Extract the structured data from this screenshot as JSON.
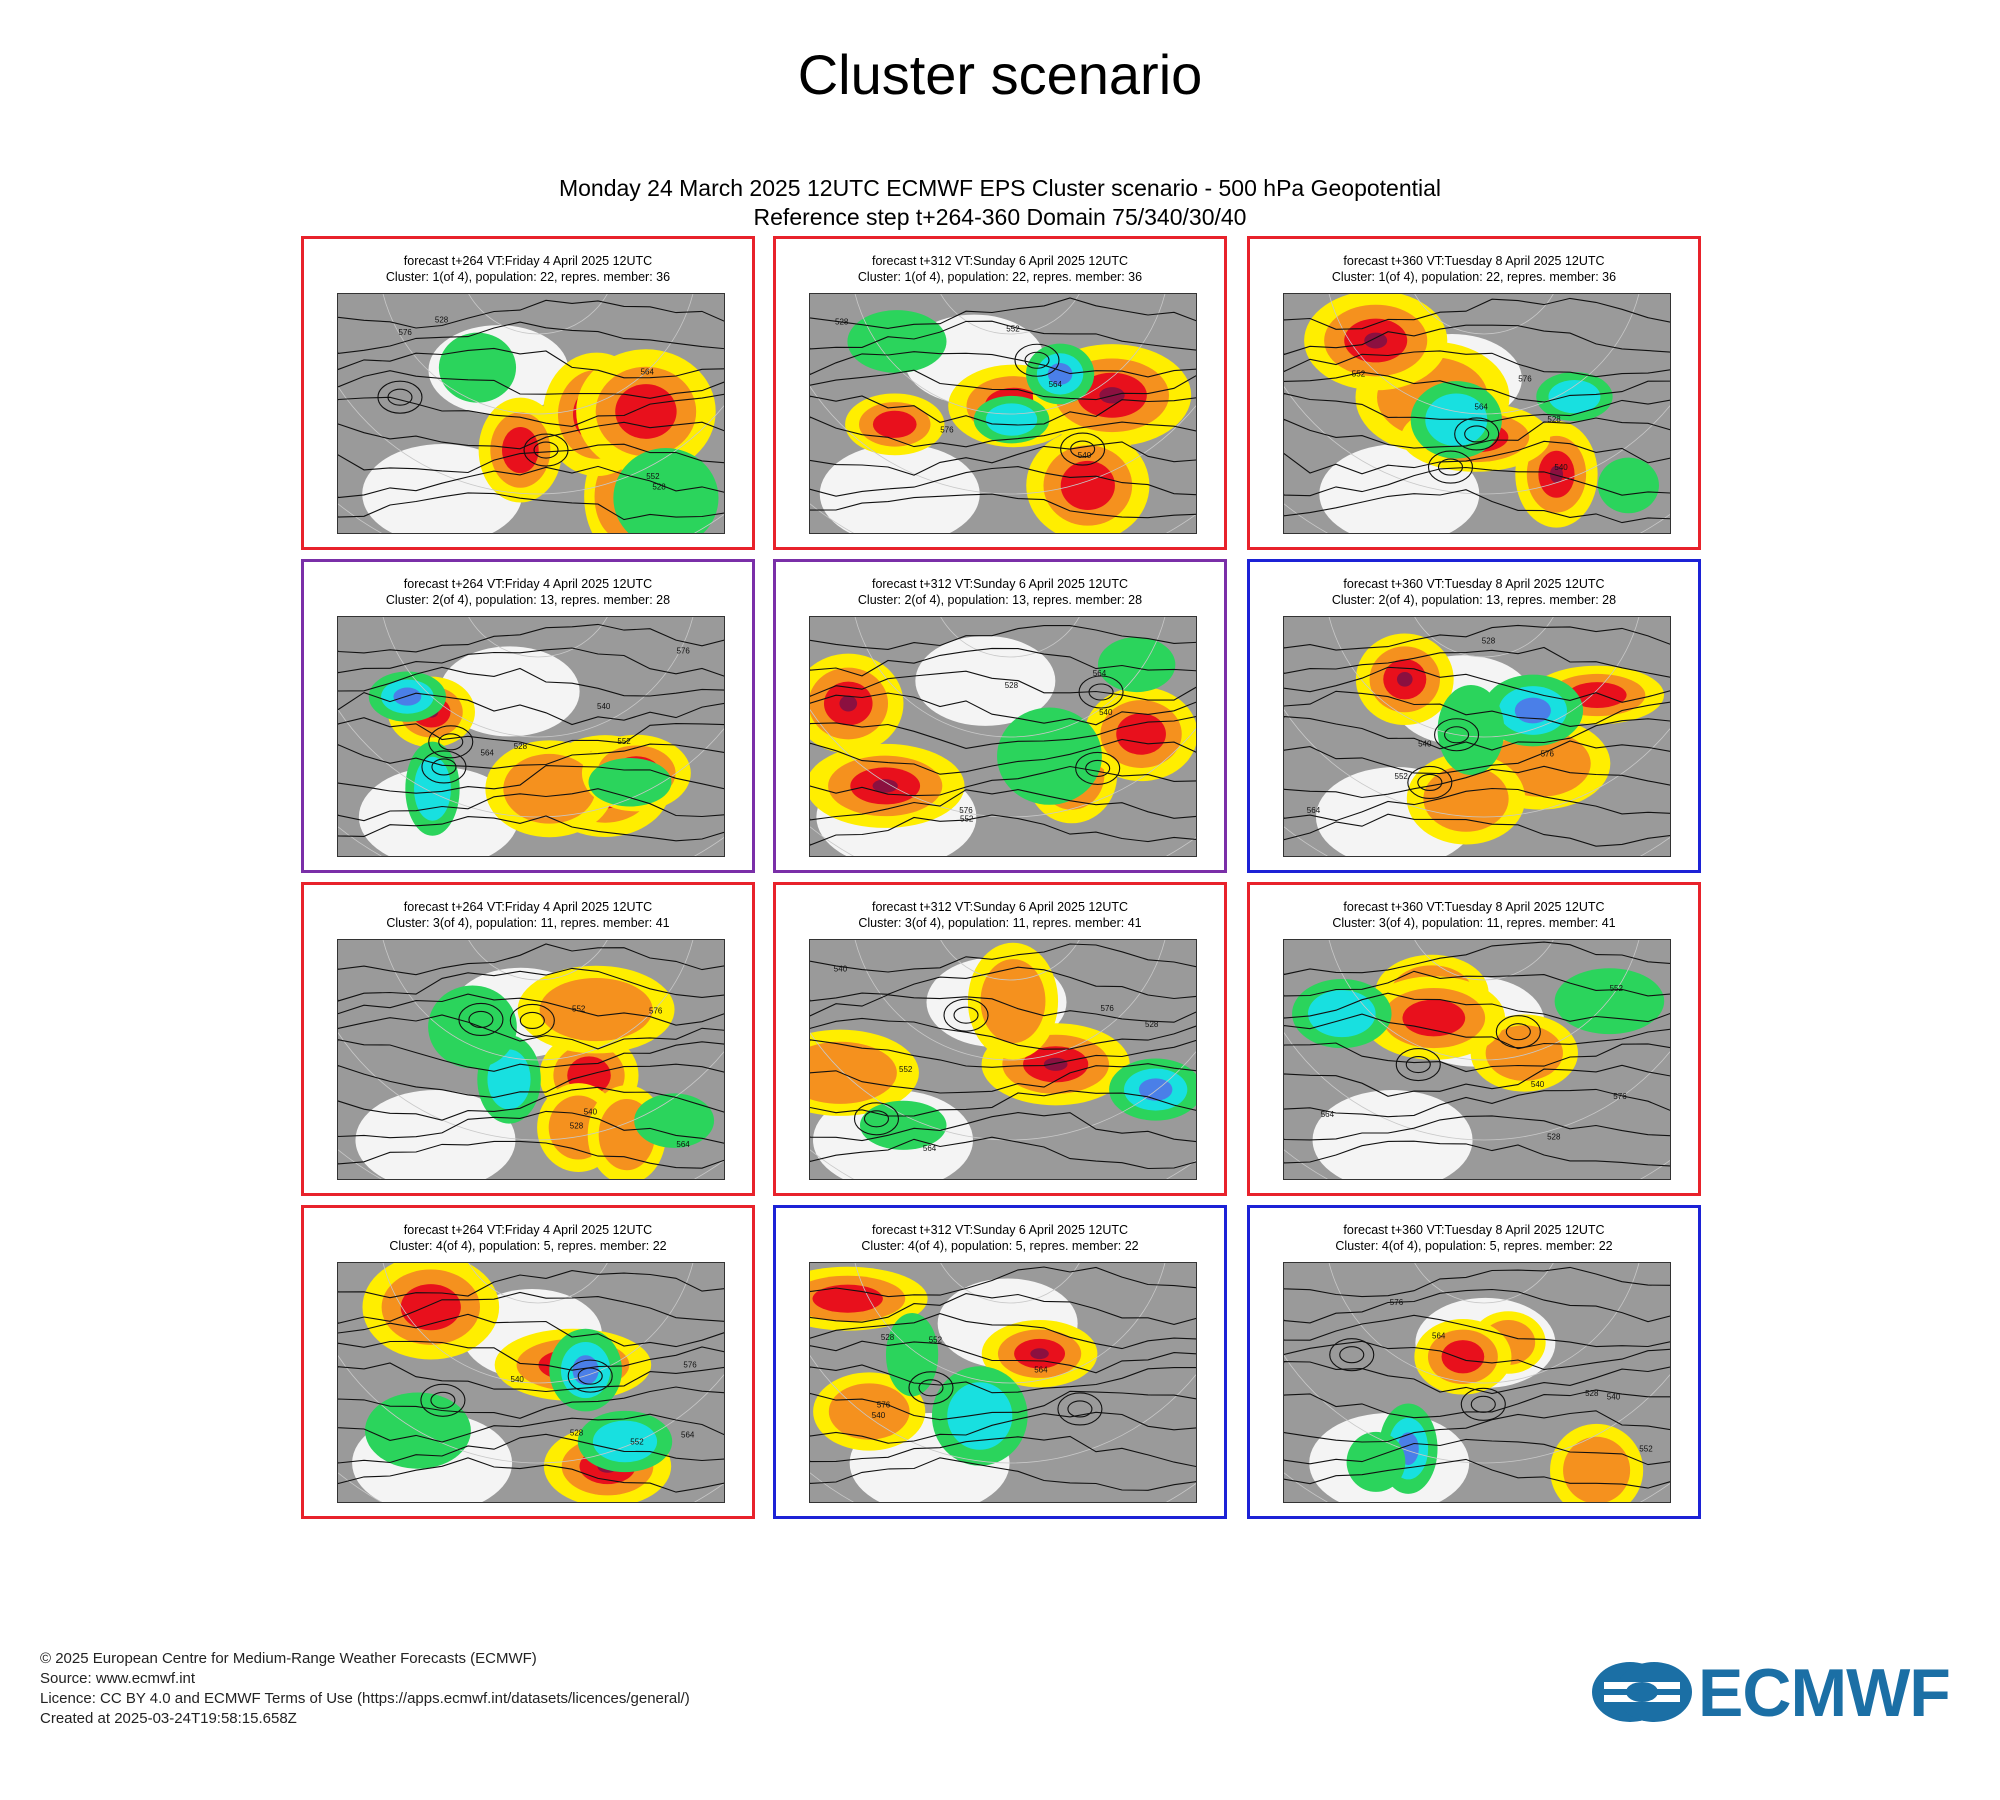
{
  "page_title": "Cluster scenario",
  "figure": {
    "line1": "Monday 24 March 2025 12UTC ECMWF EPS Cluster scenario - 500 hPa Geopotential",
    "line2": "Reference step t+264-360 Domain 75/340/30/40"
  },
  "colors": {
    "border_red": "#e8222b",
    "border_purple": "#7a2fa8",
    "border_blue": "#1c22d6",
    "anomaly_yellow": "#ffee00",
    "anomaly_orange": "#f5911e",
    "anomaly_red": "#e8101c",
    "anomaly_darkred": "#8b1040",
    "anomaly_green": "#2bd45c",
    "anomaly_cyan": "#18e0e0",
    "anomaly_blue": "#4a7fe8",
    "neutral_grey": "#9a9a9a",
    "logo_blue": "#1b6fa5"
  },
  "panels": [
    {
      "row": 1,
      "col": 1,
      "border": "red",
      "line1": "forecast t+264 VT:Friday 4 April 2025 12UTC",
      "line2": "Cluster: 1(of 4), population: 22, repres. member: 36",
      "contour_labels": [
        "576",
        "552",
        "528",
        "528",
        "564"
      ]
    },
    {
      "row": 1,
      "col": 2,
      "border": "red",
      "line1": "forecast t+312 VT:Sunday 6 April 2025 12UTC",
      "line2": "Cluster: 1(of 4), population: 22, repres. member: 36",
      "contour_labels": [
        "576",
        "552",
        "528",
        "540",
        "564"
      ]
    },
    {
      "row": 1,
      "col": 3,
      "border": "red",
      "line1": "forecast t+360 VT:Tuesday 8 April 2025 12UTC",
      "line2": "Cluster: 1(of 4), population: 22, repres. member: 36",
      "contour_labels": [
        "576",
        "552",
        "540",
        "528",
        "564"
      ]
    },
    {
      "row": 2,
      "col": 1,
      "border": "purple",
      "line1": "forecast t+264 VT:Friday 4 April 2025 12UTC",
      "line2": "Cluster: 2(of 4), population: 13, repres. member: 28",
      "contour_labels": [
        "576",
        "552",
        "528",
        "540",
        "564"
      ]
    },
    {
      "row": 2,
      "col": 2,
      "border": "purple",
      "line1": "forecast t+312 VT:Sunday 6 April 2025 12UTC",
      "line2": "Cluster: 2(of 4), population: 13, repres. member: 28",
      "contour_labels": [
        "576",
        "552",
        "528",
        "540",
        "564"
      ]
    },
    {
      "row": 2,
      "col": 3,
      "border": "blue",
      "line1": "forecast t+360 VT:Tuesday 8 April 2025 12UTC",
      "line2": "Cluster: 2(of 4), population: 13, repres. member: 28",
      "contour_labels": [
        "576",
        "552",
        "540",
        "528",
        "564"
      ]
    },
    {
      "row": 3,
      "col": 1,
      "border": "red",
      "line1": "forecast t+264 VT:Friday 4 April 2025 12UTC",
      "line2": "Cluster: 3(of 4), population: 11, repres. member: 41",
      "contour_labels": [
        "576",
        "552",
        "528",
        "540",
        "564"
      ]
    },
    {
      "row": 3,
      "col": 2,
      "border": "red",
      "line1": "forecast t+312 VT:Sunday 6 April 2025 12UTC",
      "line2": "Cluster: 3(of 4), population: 11, repres. member: 41",
      "contour_labels": [
        "576",
        "552",
        "528",
        "540",
        "564"
      ]
    },
    {
      "row": 3,
      "col": 3,
      "border": "red",
      "line1": "forecast t+360 VT:Tuesday 8 April 2025 12UTC",
      "line2": "Cluster: 3(of 4), population: 11, repres. member: 41",
      "contour_labels": [
        "576",
        "552",
        "540",
        "528",
        "564"
      ]
    },
    {
      "row": 4,
      "col": 1,
      "border": "red",
      "line1": "forecast t+264 VT:Friday 4 April 2025 12UTC",
      "line2": "Cluster: 4(of 4), population: 5, repres. member: 22",
      "contour_labels": [
        "576",
        "552",
        "528",
        "540",
        "564"
      ]
    },
    {
      "row": 4,
      "col": 2,
      "border": "blue",
      "line1": "forecast t+312 VT:Sunday 6 April 2025 12UTC",
      "line2": "Cluster: 4(of 4), population: 5, repres. member: 22",
      "contour_labels": [
        "576",
        "552",
        "528",
        "540",
        "564"
      ]
    },
    {
      "row": 4,
      "col": 3,
      "border": "blue",
      "line1": "forecast t+360 VT:Tuesday 8 April 2025 12UTC",
      "line2": "Cluster: 4(of 4), population: 5, repres. member: 22",
      "contour_labels": [
        "576",
        "552",
        "540",
        "528",
        "564"
      ]
    }
  ],
  "footer": {
    "copyright": "© 2025 European Centre for Medium-Range Weather Forecasts (ECMWF)",
    "source": "Source: www.ecmwf.int",
    "licence": "Licence: CC BY 4.0 and ECMWF Terms of Use (https://apps.ecmwf.int/datasets/licences/general/)",
    "created": "Created at 2025-03-24T19:58:15.658Z"
  },
  "logo": {
    "text": "ECMWF",
    "icon": "ecmwf-logo-mark-icon"
  }
}
